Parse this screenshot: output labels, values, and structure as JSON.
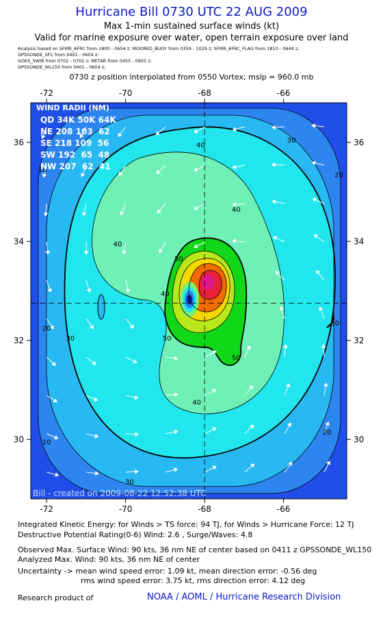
{
  "header": {
    "title": "Hurricane Bill 0730 UTC 22 AUG 2009",
    "subtitle": "Max 1-min sustained surface winds (kt)",
    "valid": "Valid for marine exposure over water, open terrain exposure over land",
    "sources": [
      "Analysis based on  SFMR_AFRC from 1800 - 0654 z;   MOORED_BUOY from 0359 - 1029 z;   SFMR_AFRC_FLAG from 1810 - 0644 z;",
      "GPSSONDE_SFC from 0401 - 0604 z;",
      "GOES_SWIR from 0702 - 0702 z;   METAR from 0455 - 0955 z;",
      "GPSSONDE_WL150 from 0401 - 0604 z;"
    ],
    "position_note": "0730 z position interpolated from 0550 Vortex; mslp = 960.0 mb"
  },
  "chart_data": {
    "type": "heatmap",
    "x_ticks": [
      -72,
      -70,
      -68,
      -66
    ],
    "y_ticks": [
      30,
      32,
      34,
      36
    ],
    "xlim": [
      -72.4,
      -64.4
    ],
    "ylim": [
      28.8,
      36.8
    ],
    "center": {
      "lon": -68.0,
      "lat": 32.75
    },
    "contour_labels": [
      {
        "text": "40",
        "lon": -68.1,
        "lat": 35.9
      },
      {
        "text": "30",
        "lon": -65.8,
        "lat": 36.0
      },
      {
        "text": "20",
        "lon": -64.6,
        "lat": 35.3
      },
      {
        "text": "10",
        "lon": -72.1,
        "lat": 35.4
      },
      {
        "text": "40",
        "lon": -67.2,
        "lat": 34.6
      },
      {
        "text": "40",
        "lon": -70.2,
        "lat": 33.9
      },
      {
        "text": "50",
        "lon": -68.65,
        "lat": 33.6
      },
      {
        "text": "40",
        "lon": -69.0,
        "lat": 32.9
      },
      {
        "text": "50",
        "lon": -68.95,
        "lat": 32.0
      },
      {
        "text": "50",
        "lon": -67.2,
        "lat": 31.6
      },
      {
        "text": "40",
        "lon": -68.2,
        "lat": 30.7
      },
      {
        "text": "30",
        "lon": -64.7,
        "lat": 32.3
      },
      {
        "text": "20",
        "lon": -72.0,
        "lat": 32.2
      },
      {
        "text": "30",
        "lon": -71.4,
        "lat": 32.0
      },
      {
        "text": "20",
        "lon": -64.9,
        "lat": 30.1
      },
      {
        "text": "10",
        "lon": -72.0,
        "lat": 29.9
      },
      {
        "text": "30",
        "lon": -69.9,
        "lat": 29.1
      }
    ],
    "wind_radii": {
      "title": "WIND RADII (NM)",
      "header": "QD 34K 50K 64K",
      "rows": [
        "NE 208 103  62",
        "SE 218 109  56",
        "SW 192  65  48",
        "NW 207  62  41"
      ]
    },
    "created_note": "Bill - created on 2009-08-22 12:52:38 UTC"
  },
  "footer": {
    "ike": "Integrated Kinetic Energy:  for Winds > TS force: 94 TJ,  for Winds > Hurricane Force: 12 TJ",
    "dpr": "Destructive Potential Rating(0-6)   Wind: 2.6 , Surge/Waves: 4.8",
    "observed": "Observed Max. Surface Wind: 90 kts, 36 nm NE of center based on 0411 z GPSSONDE_WL150",
    "analyzed": "Analyzed Max. Wind: 90 kts, 36 nm NE of center",
    "uncert1": "Uncertainty -> mean wind speed error: 1.09 kt,   mean direction error:  -0.56 deg",
    "uncert2": "rms wind speed error: 3.75 kt,   rms direction error: 4.12 deg",
    "research": "Research product of",
    "credit": "NOAA / AOML / Hurricane Research Division"
  }
}
